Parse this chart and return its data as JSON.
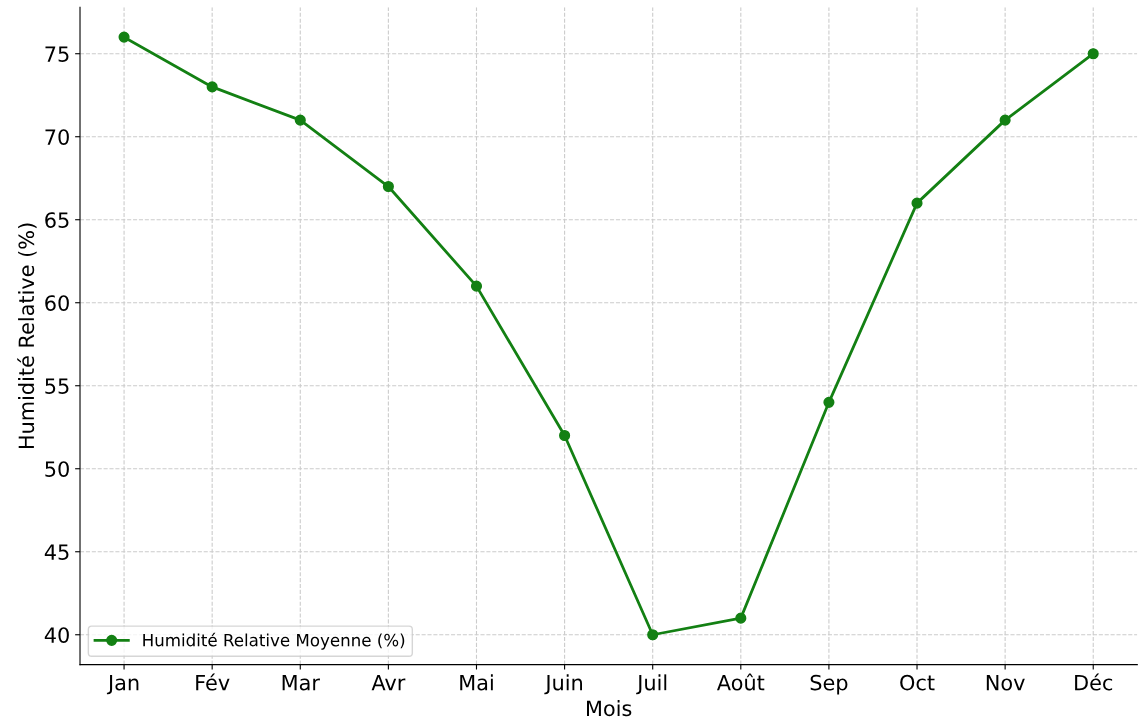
{
  "chart_data": {
    "type": "line",
    "xlabel": "Mois",
    "ylabel": "Humidité Relative (%)",
    "categories": [
      "Jan",
      "Fév",
      "Mar",
      "Avr",
      "Mai",
      "Juin",
      "Juil",
      "Août",
      "Sep",
      "Oct",
      "Nov",
      "Déc"
    ],
    "series": [
      {
        "name": "Humidité Relative Moyenne (%)",
        "color": "#138013",
        "values": [
          76,
          73,
          71,
          67,
          61,
          52,
          40,
          41,
          54,
          66,
          71,
          75
        ]
      }
    ],
    "ylim": [
      38.2,
      77.8
    ],
    "yticks": [
      40,
      45,
      50,
      55,
      60,
      65,
      70,
      75
    ],
    "grid": true,
    "legend": "bottom left",
    "marker": "circle",
    "line_style": "solid"
  }
}
